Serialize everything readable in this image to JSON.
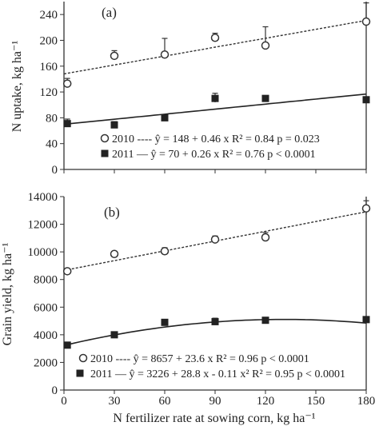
{
  "x_axis_label": "N fertilizer rate at sowing corn, kg ha⁻¹",
  "x_ticks": [
    0,
    30,
    60,
    90,
    120,
    150,
    180
  ],
  "chart_data": [
    {
      "type": "scatter",
      "panel": "(a)",
      "ylabel": "N uptake, kg ha⁻¹",
      "xlim": [
        0,
        180
      ],
      "ylim": [
        0,
        260
      ],
      "yticks": [
        0,
        40,
        80,
        120,
        160,
        200,
        240
      ],
      "x": [
        2,
        30,
        60,
        90,
        120,
        180
      ],
      "series": [
        {
          "name": "2010",
          "marker": "open-circle",
          "values": [
            133,
            176,
            178,
            204,
            192,
            229
          ],
          "err_upper": [
            141,
            184,
            203,
            211,
            221,
            258
          ],
          "err_lower": [
            128,
            171,
            173,
            199,
            188,
            225
          ],
          "fit": {
            "type": "linear",
            "intercept": 148,
            "slope": 0.46,
            "style": "dashed"
          },
          "legend_label": "2010 ---- ŷ = 148 + 0.46 x   R² = 0.84  p = 0.023"
        },
        {
          "name": "2011",
          "marker": "filled-square",
          "values": [
            71,
            69,
            80,
            110,
            110,
            108
          ],
          "err_upper": [
            78,
            74,
            84,
            118,
            114,
            111
          ],
          "err_lower": [
            66,
            65,
            77,
            104,
            107,
            106
          ],
          "fit": {
            "type": "linear",
            "intercept": 70,
            "slope": 0.26,
            "style": "solid"
          },
          "legend_label": "2011 — ŷ = 70 + 0.26 x    R² = 0.76  p < 0.0001"
        }
      ]
    },
    {
      "type": "scatter",
      "panel": "(b)",
      "ylabel": "Grain yield, kg ha⁻¹",
      "xlim": [
        0,
        180
      ],
      "ylim": [
        0,
        14000
      ],
      "yticks": [
        0,
        2000,
        4000,
        6000,
        8000,
        10000,
        12000,
        14000
      ],
      "x": [
        2,
        30,
        60,
        90,
        120,
        180
      ],
      "series": [
        {
          "name": "2010",
          "marker": "open-circle",
          "values": [
            8600,
            9850,
            10050,
            10900,
            11050,
            13150
          ],
          "err_upper": [
            8750,
            10000,
            10300,
            11150,
            11400,
            13700
          ],
          "err_lower": [
            8450,
            9700,
            9850,
            10700,
            10800,
            12700
          ],
          "fit": {
            "type": "linear",
            "intercept": 8657,
            "slope": 23.6,
            "style": "dashed"
          },
          "legend_label": "2010 ---- ŷ = 8657 + 23.6 x    R² = 0.96   p < 0.0001"
        },
        {
          "name": "2011",
          "marker": "filled-square",
          "values": [
            3250,
            4000,
            4900,
            4950,
            5050,
            5100
          ],
          "err_upper": [
            3300,
            4080,
            4980,
            5200,
            5150,
            5300
          ],
          "err_lower": [
            3200,
            3950,
            4850,
            4750,
            4980,
            4950
          ],
          "fit": {
            "type": "quadratic",
            "intercept": 3226,
            "b1": 28.8,
            "b2": -0.11,
            "style": "solid"
          },
          "legend_label": "2011 — ŷ = 3226 + 28.8 x - 0.11 x²   R² = 0.95  p < 0.0001"
        }
      ]
    }
  ]
}
